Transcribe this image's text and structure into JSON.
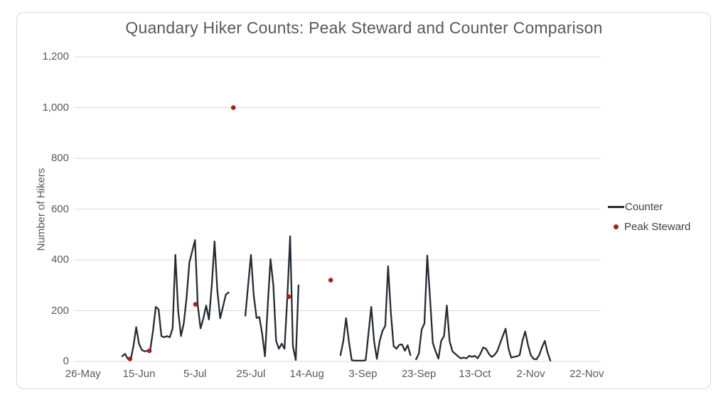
{
  "title": "Quandary Hiker Counts: Peak Steward and Counter Comparison",
  "colors": {
    "background": "#ffffff",
    "frame_border": "#d9d9d9",
    "gridline": "#d9d9d9",
    "axis_text": "#595959",
    "title_text": "#595959",
    "legend_text": "#404040",
    "counter_line": "#262b33",
    "peak_steward_dot": "#a32024"
  },
  "legend": {
    "position": "right",
    "items": [
      {
        "label": "Counter",
        "marker": "line"
      },
      {
        "label": "Peak Steward",
        "marker": "dot"
      }
    ]
  },
  "chart_data": {
    "type": "line+scatter",
    "title": "Quandary Hiker Counts: Peak Steward and Counter Comparison",
    "xlabel": "",
    "ylabel": "Number of Hikers",
    "ylim": [
      0,
      1200
    ],
    "yticks": [
      0,
      200,
      400,
      600,
      800,
      1000,
      1200
    ],
    "ytick_labels": [
      "0",
      "200",
      "400",
      "600",
      "800",
      "1,000",
      "1,200"
    ],
    "xtick_days": [
      0,
      20,
      40,
      60,
      80,
      100,
      120,
      140,
      160,
      180
    ],
    "xtick_labels": [
      "26-May",
      "15-Jun",
      "5-Jul",
      "25-Jul",
      "14-Aug",
      "3-Sep",
      "23-Sep",
      "13-Oct",
      "2-Nov",
      "22-Nov"
    ],
    "x_day0_date": "26-May",
    "x_domain_days": [
      -3,
      185
    ],
    "grid": "horizontal-only",
    "series": [
      {
        "name": "Counter",
        "type": "line",
        "color": "#262b33",
        "x_unit": "days-after-26-May",
        "segments": [
          [
            [
              14,
              20
            ],
            [
              15,
              30
            ],
            [
              16,
              10
            ],
            [
              17,
              5
            ],
            [
              18,
              60
            ],
            [
              19,
              135
            ],
            [
              20,
              70
            ],
            [
              21,
              45
            ],
            [
              22,
              40
            ],
            [
              23,
              42
            ],
            [
              24,
              45
            ],
            [
              25,
              120
            ],
            [
              26,
              215
            ],
            [
              27,
              205
            ],
            [
              28,
              100
            ],
            [
              29,
              95
            ],
            [
              30,
              100
            ],
            [
              31,
              95
            ],
            [
              32,
              130
            ],
            [
              33,
              420
            ],
            [
              34,
              200
            ],
            [
              35,
              100
            ],
            [
              36,
              150
            ],
            [
              37,
              250
            ],
            [
              38,
              390
            ],
            [
              40,
              478
            ],
            [
              41,
              220
            ],
            [
              42,
              130
            ],
            [
              43,
              170
            ],
            [
              44,
              220
            ],
            [
              45,
              165
            ],
            [
              46,
              300
            ],
            [
              47,
              473
            ],
            [
              48,
              280
            ],
            [
              49,
              170
            ],
            [
              50,
              215
            ],
            [
              51,
              263
            ],
            [
              52,
              272
            ]
          ],
          [
            [
              58,
              180
            ],
            [
              59,
              300
            ],
            [
              60,
              420
            ],
            [
              61,
              260
            ],
            [
              62,
              171
            ],
            [
              63,
              175
            ],
            [
              64,
              110
            ],
            [
              65,
              20
            ],
            [
              66,
              220
            ],
            [
              67,
              403
            ],
            [
              68,
              300
            ],
            [
              69,
              80
            ],
            [
              70,
              50
            ],
            [
              71,
              70
            ],
            [
              72,
              50
            ],
            [
              73,
              250
            ],
            [
              74,
              493
            ],
            [
              75,
              60
            ],
            [
              76,
              6
            ],
            [
              77,
              300
            ]
          ],
          [
            [
              92,
              25
            ],
            [
              93,
              80
            ],
            [
              94,
              170
            ],
            [
              95,
              80
            ],
            [
              96,
              5
            ],
            [
              97,
              3
            ],
            [
              98,
              3
            ],
            [
              99,
              3
            ],
            [
              100,
              3
            ],
            [
              101,
              5
            ],
            [
              102,
              110
            ],
            [
              103,
              215
            ],
            [
              104,
              80
            ],
            [
              105,
              10
            ],
            [
              106,
              80
            ],
            [
              107,
              120
            ],
            [
              108,
              140
            ],
            [
              109,
              375
            ],
            [
              110,
              190
            ],
            [
              111,
              60
            ],
            [
              112,
              50
            ],
            [
              113,
              65
            ],
            [
              114,
              67
            ],
            [
              115,
              42
            ],
            [
              116,
              64
            ],
            [
              117,
              25
            ]
          ],
          [
            [
              119,
              8
            ],
            [
              120,
              30
            ],
            [
              121,
              125
            ],
            [
              122,
              150
            ],
            [
              123,
              417
            ],
            [
              124,
              249
            ],
            [
              125,
              73
            ],
            [
              126,
              39
            ],
            [
              127,
              11
            ],
            [
              128,
              81
            ],
            [
              129,
              100
            ],
            [
              130,
              220
            ],
            [
              131,
              80
            ],
            [
              132,
              40
            ],
            [
              133,
              30
            ],
            [
              134,
              20
            ],
            [
              135,
              12
            ],
            [
              136,
              15
            ],
            [
              137,
              12
            ],
            [
              138,
              22
            ],
            [
              139,
              18
            ],
            [
              140,
              22
            ],
            [
              141,
              12
            ],
            [
              142,
              30
            ],
            [
              143,
              55
            ],
            [
              144,
              50
            ],
            [
              145,
              30
            ],
            [
              146,
              18
            ],
            [
              147,
              25
            ],
            [
              148,
              40
            ],
            [
              149,
              70
            ],
            [
              150,
              100
            ],
            [
              151,
              129
            ],
            [
              152,
              53
            ],
            [
              153,
              15
            ],
            [
              154,
              18
            ],
            [
              155,
              20
            ],
            [
              156,
              25
            ],
            [
              157,
              80
            ],
            [
              158,
              118
            ],
            [
              159,
              65
            ],
            [
              160,
              25
            ],
            [
              161,
              10
            ],
            [
              162,
              8
            ],
            [
              163,
              25
            ],
            [
              164,
              55
            ],
            [
              165,
              81
            ],
            [
              166,
              35
            ],
            [
              167,
              3
            ]
          ]
        ]
      },
      {
        "name": "Peak Steward",
        "type": "scatter",
        "color": "#a32024",
        "x_unit": "days-after-26-May",
        "points": [
          [
            16.8,
            10
          ],
          [
            23.7,
            42
          ],
          [
            40.2,
            225
          ],
          [
            53.7,
            1000
          ],
          [
            73.5,
            255
          ],
          [
            88.5,
            320
          ]
        ]
      }
    ]
  }
}
